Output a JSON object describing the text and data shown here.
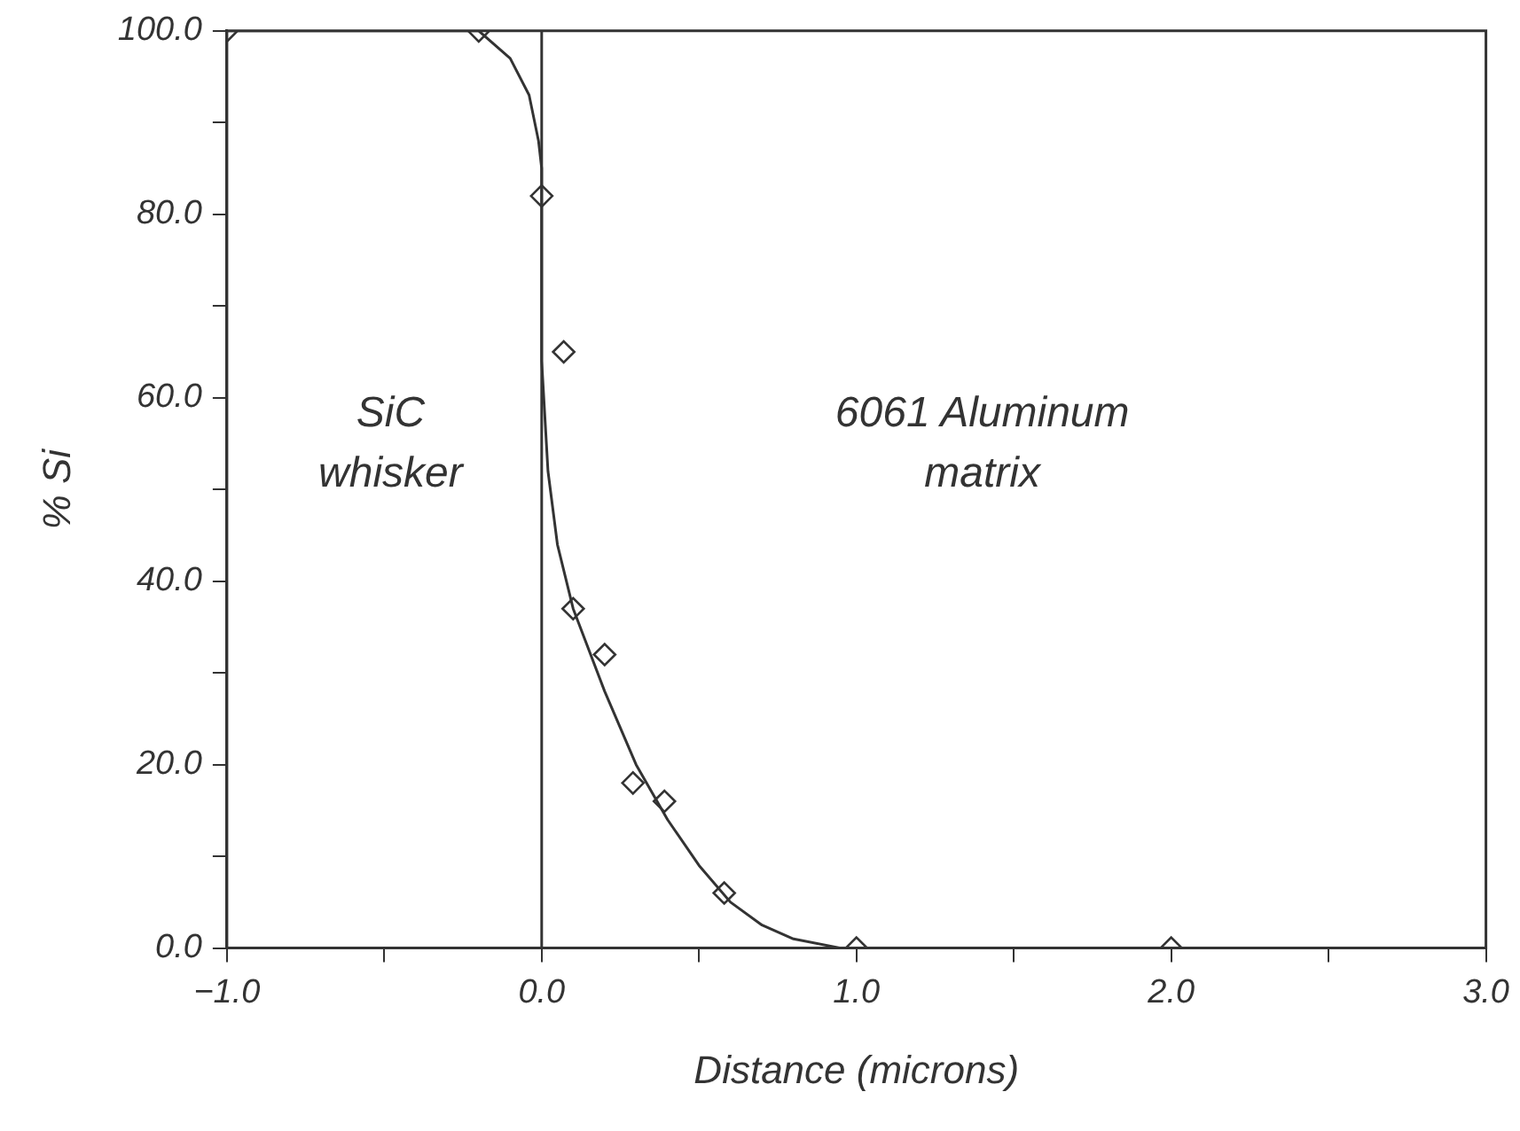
{
  "chart_data": {
    "type": "scatter",
    "xlabel": "Distance (microns)",
    "ylabel": "% Si",
    "xlim": [
      -1,
      3
    ],
    "ylim": [
      0,
      100
    ],
    "xticks": [
      {
        "value": -1,
        "label": "−1.0"
      },
      {
        "value": -0.5,
        "label": null
      },
      {
        "value": 0,
        "label": "0.0"
      },
      {
        "value": 0.5,
        "label": null
      },
      {
        "value": 1,
        "label": "1.0"
      },
      {
        "value": 1.5,
        "label": null
      },
      {
        "value": 2,
        "label": "2.0"
      },
      {
        "value": 2.5,
        "label": null
      },
      {
        "value": 3,
        "label": "3.0"
      }
    ],
    "yticks": [
      {
        "value": 0,
        "label": "0.0"
      },
      {
        "value": 10,
        "label": null
      },
      {
        "value": 20,
        "label": "20.0"
      },
      {
        "value": 30,
        "label": null
      },
      {
        "value": 40,
        "label": "40.0"
      },
      {
        "value": 50,
        "label": null
      },
      {
        "value": 60,
        "label": "60.0"
      },
      {
        "value": 70,
        "label": null
      },
      {
        "value": 80,
        "label": "80.0"
      },
      {
        "value": 90,
        "label": null
      },
      {
        "value": 100,
        "label": "100.0"
      }
    ],
    "grid": false,
    "legend": false,
    "ref_lines": [
      {
        "axis": "x",
        "value": 0,
        "color": "#333333"
      }
    ],
    "annotations": [
      "SiC whisker",
      "6061 Aluminum matrix"
    ],
    "series": [
      {
        "type": "scatter",
        "marker": "diamond",
        "color": "#333333",
        "x": [
          -1,
          -0.2,
          0,
          0.07,
          0.1,
          0.2,
          0.29,
          0.39,
          0.58,
          1,
          2
        ],
        "values": [
          100,
          100,
          82,
          65,
          37,
          32,
          18,
          16,
          6,
          0,
          0
        ]
      },
      {
        "type": "line",
        "marker": "none",
        "line_style": "solid",
        "color": "#333333",
        "x": [
          -1,
          -0.2,
          -0.1,
          -0.04,
          -0.01,
          0,
          0,
          0.02,
          0.05,
          0.1,
          0.2,
          0.3,
          0.4,
          0.5,
          0.6,
          0.7,
          0.8,
          0.95
        ],
        "values": [
          100,
          100,
          97,
          93,
          88,
          85,
          64,
          52,
          44,
          37,
          28,
          20,
          14,
          9,
          5,
          2.5,
          1,
          0
        ]
      }
    ]
  }
}
